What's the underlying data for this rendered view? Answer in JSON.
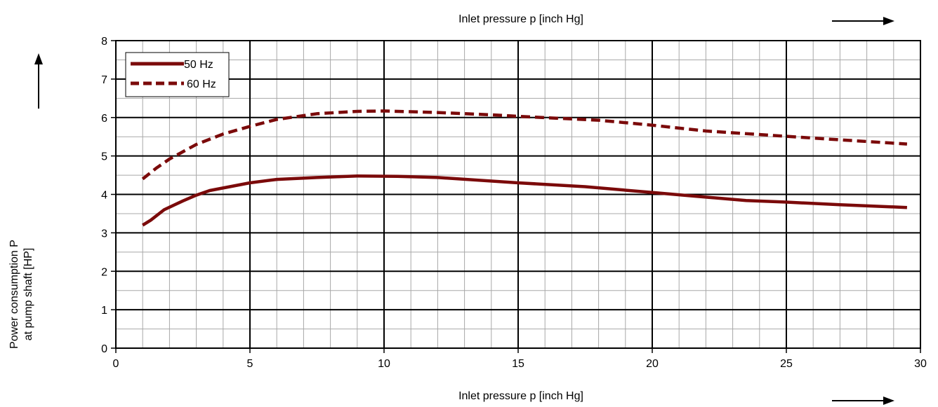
{
  "chart_data": {
    "type": "line",
    "top_label": "Inlet pressure p [inch Hg]",
    "xlabel": "Inlet pressure p [inch Hg]",
    "ylabel_line1": "Power consumption P",
    "ylabel_line2": "at pump shaft [HP]",
    "xlim": [
      0,
      30
    ],
    "ylim": [
      0,
      8
    ],
    "x_ticks": [
      "0",
      "5",
      "10",
      "15",
      "20",
      "25",
      "30"
    ],
    "y_ticks": [
      "0",
      "1",
      "2",
      "3",
      "4",
      "5",
      "6",
      "7",
      "8"
    ],
    "grid": true,
    "legend_position": "top-left",
    "series": [
      {
        "name": "50 Hz",
        "style": "solid",
        "color": "#7b0a0a",
        "points": [
          [
            1.0,
            3.2
          ],
          [
            1.3,
            3.33
          ],
          [
            1.8,
            3.6
          ],
          [
            2.5,
            3.83
          ],
          [
            3.0,
            3.98
          ],
          [
            3.5,
            4.1
          ],
          [
            5.0,
            4.3
          ],
          [
            6.0,
            4.39
          ],
          [
            7.5,
            4.44
          ],
          [
            9.0,
            4.48
          ],
          [
            10.5,
            4.47
          ],
          [
            12.0,
            4.44
          ],
          [
            15.0,
            4.3
          ],
          [
            17.5,
            4.2
          ],
          [
            20.0,
            4.05
          ],
          [
            21.5,
            3.96
          ],
          [
            23.5,
            3.84
          ],
          [
            25.0,
            3.8
          ],
          [
            27.0,
            3.73
          ],
          [
            29.5,
            3.66
          ]
        ]
      },
      {
        "name": "60 Hz",
        "style": "dashed",
        "color": "#7b0a0a",
        "points": [
          [
            1.0,
            4.4
          ],
          [
            1.5,
            4.68
          ],
          [
            2.0,
            4.92
          ],
          [
            3.0,
            5.3
          ],
          [
            4.0,
            5.57
          ],
          [
            5.0,
            5.77
          ],
          [
            6.0,
            5.95
          ],
          [
            7.5,
            6.1
          ],
          [
            9.0,
            6.16
          ],
          [
            10.0,
            6.17
          ],
          [
            12.0,
            6.13
          ],
          [
            14.0,
            6.07
          ],
          [
            15.0,
            6.03
          ],
          [
            18.0,
            5.93
          ],
          [
            20.0,
            5.8
          ],
          [
            22.0,
            5.65
          ],
          [
            25.0,
            5.51
          ],
          [
            27.0,
            5.42
          ],
          [
            29.5,
            5.31
          ]
        ]
      }
    ]
  }
}
